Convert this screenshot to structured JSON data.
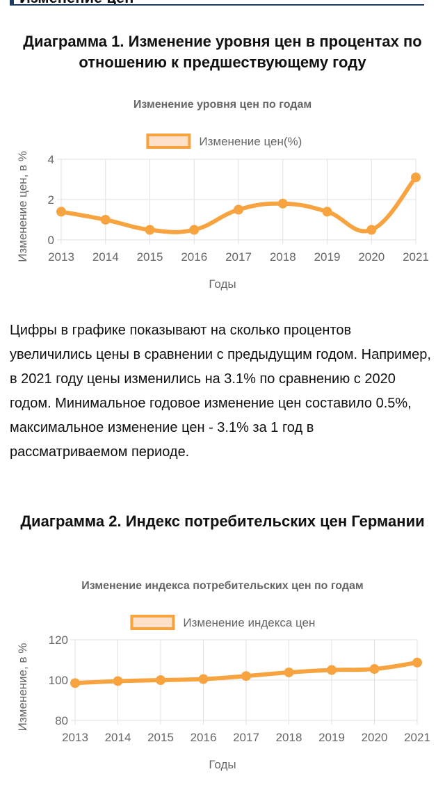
{
  "top_section": {
    "title": "Изменение цен"
  },
  "heading1": "Диаграмма 1. Изменение уровня цен в процентах по отношению к предшествующему году",
  "paragraph": "Цифры в графике показывают на сколько процентов увеличились цены в сравнении с предыдущим годом. Например, в 2021 году цены изменились на 3.1% по сравнению с 2020 годом. Минимальное годовое изменение цен составило 0.5%, максимальное изменение цен - 3.1% за 1 год в рассматриваемом периоде.",
  "heading2": "Диаграмма 2. Индекс потребительских цен Германии",
  "colors": {
    "series": "#f7a340",
    "legend_fill": "#fde0c8",
    "grid": "#e0e0e0",
    "text": "#666666"
  },
  "chart_data": [
    {
      "type": "line",
      "title": "Изменение уровня цен по годам",
      "xlabel": "Годы",
      "ylabel": "Изменение цен, в %",
      "x": [
        "2013",
        "2014",
        "2015",
        "2016",
        "2017",
        "2018",
        "2019",
        "2020",
        "2021"
      ],
      "series": [
        {
          "name": "Изменение цен(%)",
          "values": [
            1.4,
            1.0,
            0.5,
            0.5,
            1.5,
            1.8,
            1.4,
            0.5,
            3.1
          ]
        }
      ],
      "ylim": [
        0,
        4
      ],
      "yticks": [
        0,
        2,
        4
      ],
      "grid": true,
      "legend": "top",
      "smooth": true
    },
    {
      "type": "line",
      "title": "Изменение индекса потребительских цен по годам",
      "xlabel": "Годы",
      "ylabel": "Изменение, в %",
      "x": [
        "2013",
        "2014",
        "2015",
        "2016",
        "2017",
        "2018",
        "2019",
        "2020",
        "2021"
      ],
      "series": [
        {
          "name": "Изменение индекса цен",
          "values": [
            98.5,
            99.5,
            100.0,
            100.5,
            102.0,
            103.8,
            105.0,
            105.5,
            108.7
          ]
        }
      ],
      "ylim": [
        80,
        120
      ],
      "yticks": [
        80,
        100,
        120
      ],
      "grid": true,
      "legend": "top",
      "smooth": true
    }
  ]
}
